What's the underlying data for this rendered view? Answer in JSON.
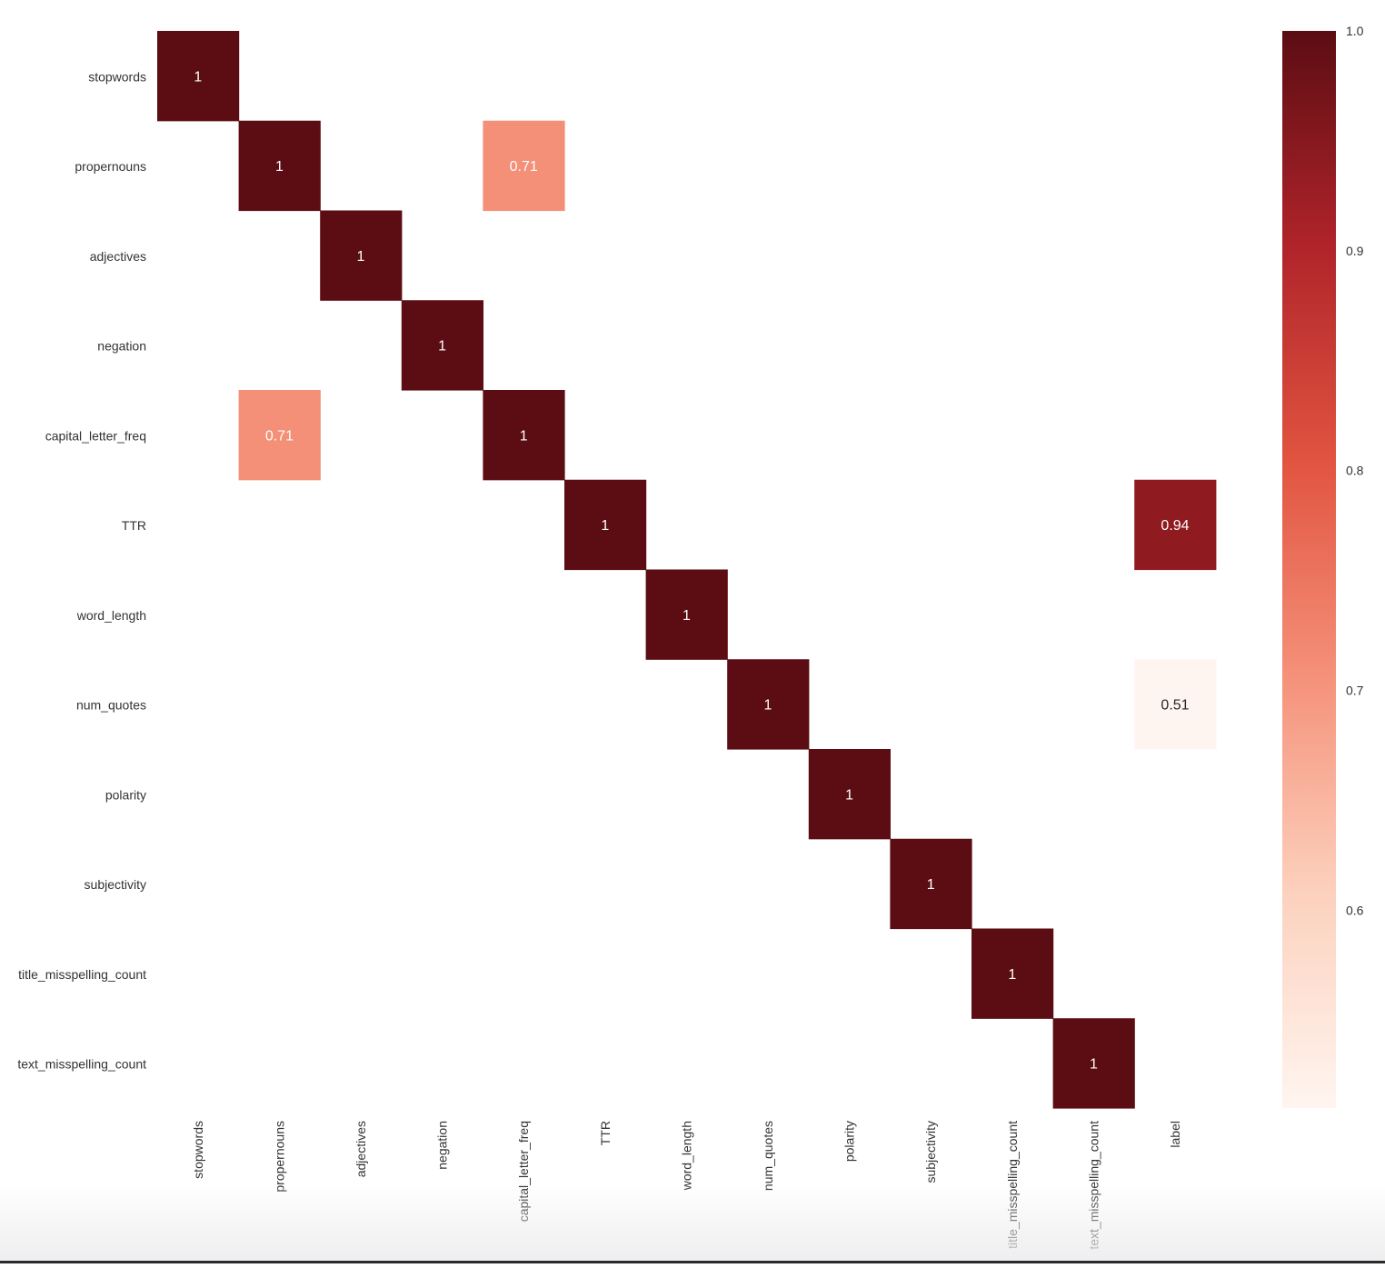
{
  "chart_data": {
    "type": "heatmap",
    "title": "",
    "row_labels": [
      "stopwords",
      "propernouns",
      "adjectives",
      "negation",
      "capital_letter_freq",
      "TTR",
      "word_length",
      "num_quotes",
      "polarity",
      "subjectivity",
      "title_misspelling_count",
      "text_misspelling_count"
    ],
    "col_labels": [
      "stopwords",
      "propernouns",
      "adjectives",
      "negation",
      "capital_letter_freq",
      "TTR",
      "word_length",
      "num_quotes",
      "polarity",
      "subjectivity",
      "title_misspelling_count",
      "text_misspelling_count",
      "label"
    ],
    "values": [
      [
        1,
        null,
        null,
        null,
        null,
        null,
        null,
        null,
        null,
        null,
        null,
        null,
        null
      ],
      [
        null,
        1,
        null,
        null,
        0.71,
        null,
        null,
        null,
        null,
        null,
        null,
        null,
        null
      ],
      [
        null,
        null,
        1,
        null,
        null,
        null,
        null,
        null,
        null,
        null,
        null,
        null,
        null
      ],
      [
        null,
        null,
        null,
        1,
        null,
        null,
        null,
        null,
        null,
        null,
        null,
        null,
        null
      ],
      [
        null,
        0.71,
        null,
        null,
        1,
        null,
        null,
        null,
        null,
        null,
        null,
        null,
        null
      ],
      [
        null,
        null,
        null,
        null,
        null,
        1,
        null,
        null,
        null,
        null,
        null,
        null,
        0.94
      ],
      [
        null,
        null,
        null,
        null,
        null,
        null,
        1,
        null,
        null,
        null,
        null,
        null,
        null
      ],
      [
        null,
        null,
        null,
        null,
        null,
        null,
        null,
        1,
        null,
        null,
        null,
        null,
        0.51
      ],
      [
        null,
        null,
        null,
        null,
        null,
        null,
        null,
        null,
        1,
        null,
        null,
        null,
        null
      ],
      [
        null,
        null,
        null,
        null,
        null,
        null,
        null,
        null,
        null,
        1,
        null,
        null,
        null
      ],
      [
        null,
        null,
        null,
        null,
        null,
        null,
        null,
        null,
        null,
        null,
        1,
        null,
        null
      ],
      [
        null,
        null,
        null,
        null,
        null,
        null,
        null,
        null,
        null,
        null,
        null,
        1,
        null
      ]
    ],
    "annotations": true,
    "colormap": "Reds",
    "colorbar": {
      "range": [
        0.51,
        1.0
      ],
      "ticks": [
        1.0,
        0.9,
        0.8,
        0.7,
        0.6
      ],
      "tick_labels": [
        "1.0",
        "0.9",
        "0.8",
        "0.7",
        "0.6"
      ],
      "position": "right"
    },
    "grid": false
  }
}
